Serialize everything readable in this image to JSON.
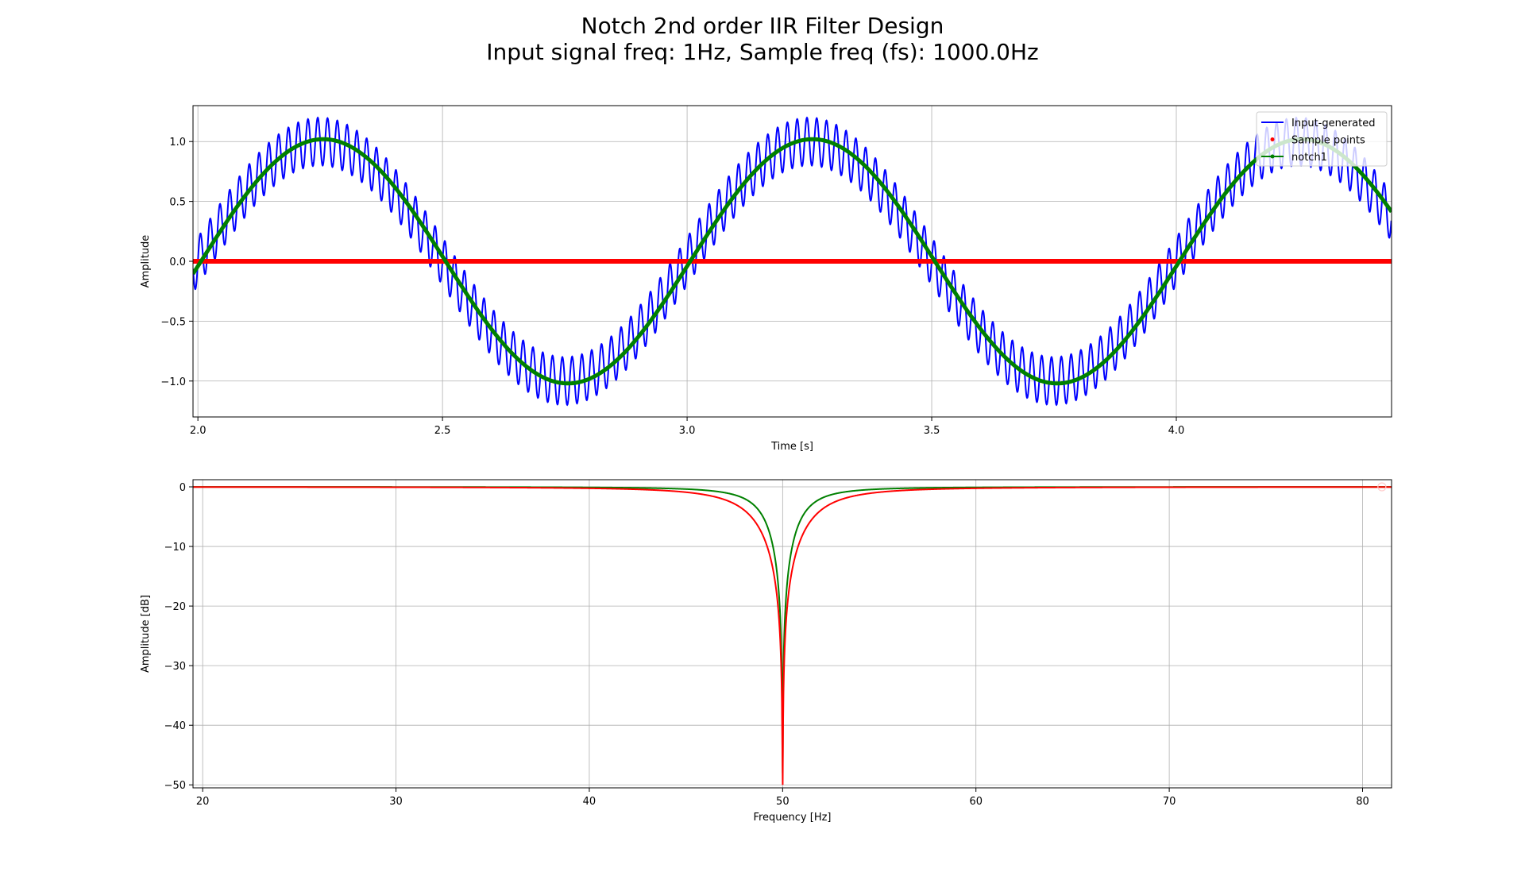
{
  "figure": {
    "title_line1": "Notch 2nd order IIR Filter Design",
    "title_line2": "Input signal freq: 1Hz, Sample freq (fs): 1000.0Hz"
  },
  "chart_data": [
    {
      "type": "line",
      "title": "",
      "xlabel": "Time [s]",
      "ylabel": "Amplitude",
      "xlim": [
        1.99,
        4.44
      ],
      "ylim": [
        -1.3,
        1.3
      ],
      "xticks": [
        2.0,
        2.5,
        3.0,
        3.5,
        4.0
      ],
      "xtick_labels": [
        "2.0",
        "2.5",
        "3.0",
        "3.5",
        "4.0"
      ],
      "yticks": [
        -1.0,
        -0.5,
        0.0,
        0.5,
        1.0
      ],
      "ytick_labels": [
        "−1.0",
        "−0.5",
        "0.0",
        "0.5",
        "1.0"
      ],
      "grid": true,
      "legend_position": "upper-right",
      "series": [
        {
          "name": "Input-generated",
          "color": "#0000ff",
          "kind": "line",
          "model": "sin(2*pi*1*t) + 0.2*sin(2*pi*50*t)",
          "signal_freq_hz": 1,
          "noise_freq_hz": 50,
          "noise_amplitude": 0.2
        },
        {
          "name": "Sample points",
          "color": "#ff0000",
          "kind": "points",
          "model": "y = 0 at every sample t = n/1000",
          "value": 0.0
        },
        {
          "name": "notch1",
          "color": "#008000",
          "kind": "line-marker",
          "model": "sin(2*pi*1*t)",
          "amplitude": 1.02
        }
      ]
    },
    {
      "type": "line",
      "title": "",
      "xlabel": "Frequency [Hz]",
      "ylabel": "Amplitude [dB]",
      "xlim": [
        19.5,
        81.5
      ],
      "ylim": [
        -50.5,
        1.2
      ],
      "xticks": [
        20,
        30,
        40,
        50,
        60,
        70,
        80
      ],
      "xtick_labels": [
        "20",
        "30",
        "40",
        "50",
        "60",
        "70",
        "80"
      ],
      "yticks": [
        0,
        -10,
        -20,
        -30,
        -40,
        -50
      ],
      "ytick_labels": [
        "0",
        "−10",
        "−20",
        "−30",
        "−40",
        "−50"
      ],
      "grid": true,
      "series": [
        {
          "color": "#008000",
          "notch_freq_hz": 50,
          "bandwidth_hz": 3.0,
          "min_db": -48
        },
        {
          "color": "#ff0000",
          "notch_freq_hz": 50,
          "bandwidth_hz": 4.8,
          "min_db": -50
        }
      ]
    }
  ]
}
